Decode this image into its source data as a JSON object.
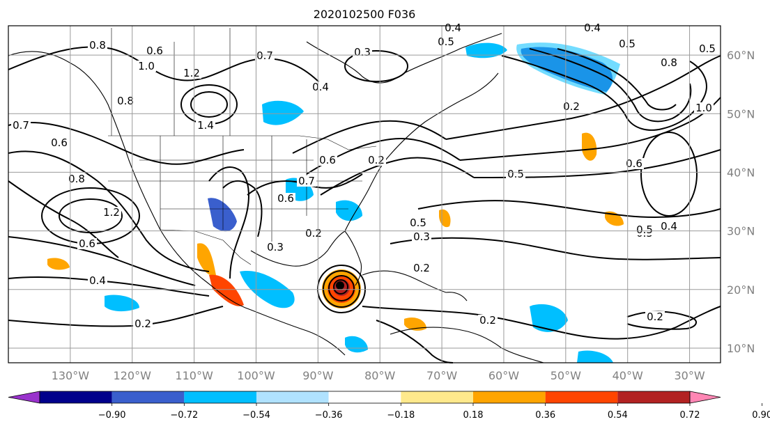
{
  "title": "2020102500 F036",
  "map": {
    "lon_range": [
      -140,
      -25
    ],
    "lat_range": [
      7.5,
      65
    ],
    "lon_ticks": [
      "130°W",
      "120°W",
      "110°W",
      "100°W",
      "90°W",
      "80°W",
      "70°W",
      "60°W",
      "50°W",
      "40°W",
      "30°W"
    ],
    "lat_ticks": [
      "10°N",
      "20°N",
      "30°N",
      "40°N",
      "50°N",
      "60°N"
    ],
    "gridlines": true
  },
  "colorbar": {
    "orientation": "horizontal",
    "extend": "both",
    "tick_labels": [
      "−0.90",
      "−0.72",
      "−0.54",
      "−0.36",
      "−0.18",
      "0.18",
      "0.36",
      "0.54",
      "0.72",
      "0.90"
    ],
    "colors": [
      "#9932cc",
      "#00008b",
      "#3a5fcd",
      "#00bfff",
      "#b0e2ff",
      "#ffffff",
      "#ffe98c",
      "#ffa500",
      "#ff4500",
      "#b22222",
      "#ff86b4"
    ]
  },
  "contour_labels": [
    "0.8",
    "0.6",
    "0.7",
    "1.0",
    "1.2",
    "1.4",
    "0.8",
    "0.7",
    "0.3",
    "0.4",
    "0.5",
    "0.4",
    "0.5",
    "0.4",
    "0.8",
    "1.0",
    "0.2",
    "0.6",
    "0.6",
    "0.5",
    "0.6",
    "0.4",
    "0.5",
    "0.7",
    "0.6",
    "0.8",
    "1.2",
    "0.6",
    "0.4",
    "0.2",
    "0.3",
    "0.2",
    "0.3",
    "0.5",
    "0.2",
    "0.2",
    "0.5",
    "0.2",
    "0.2",
    "0.5"
  ]
}
